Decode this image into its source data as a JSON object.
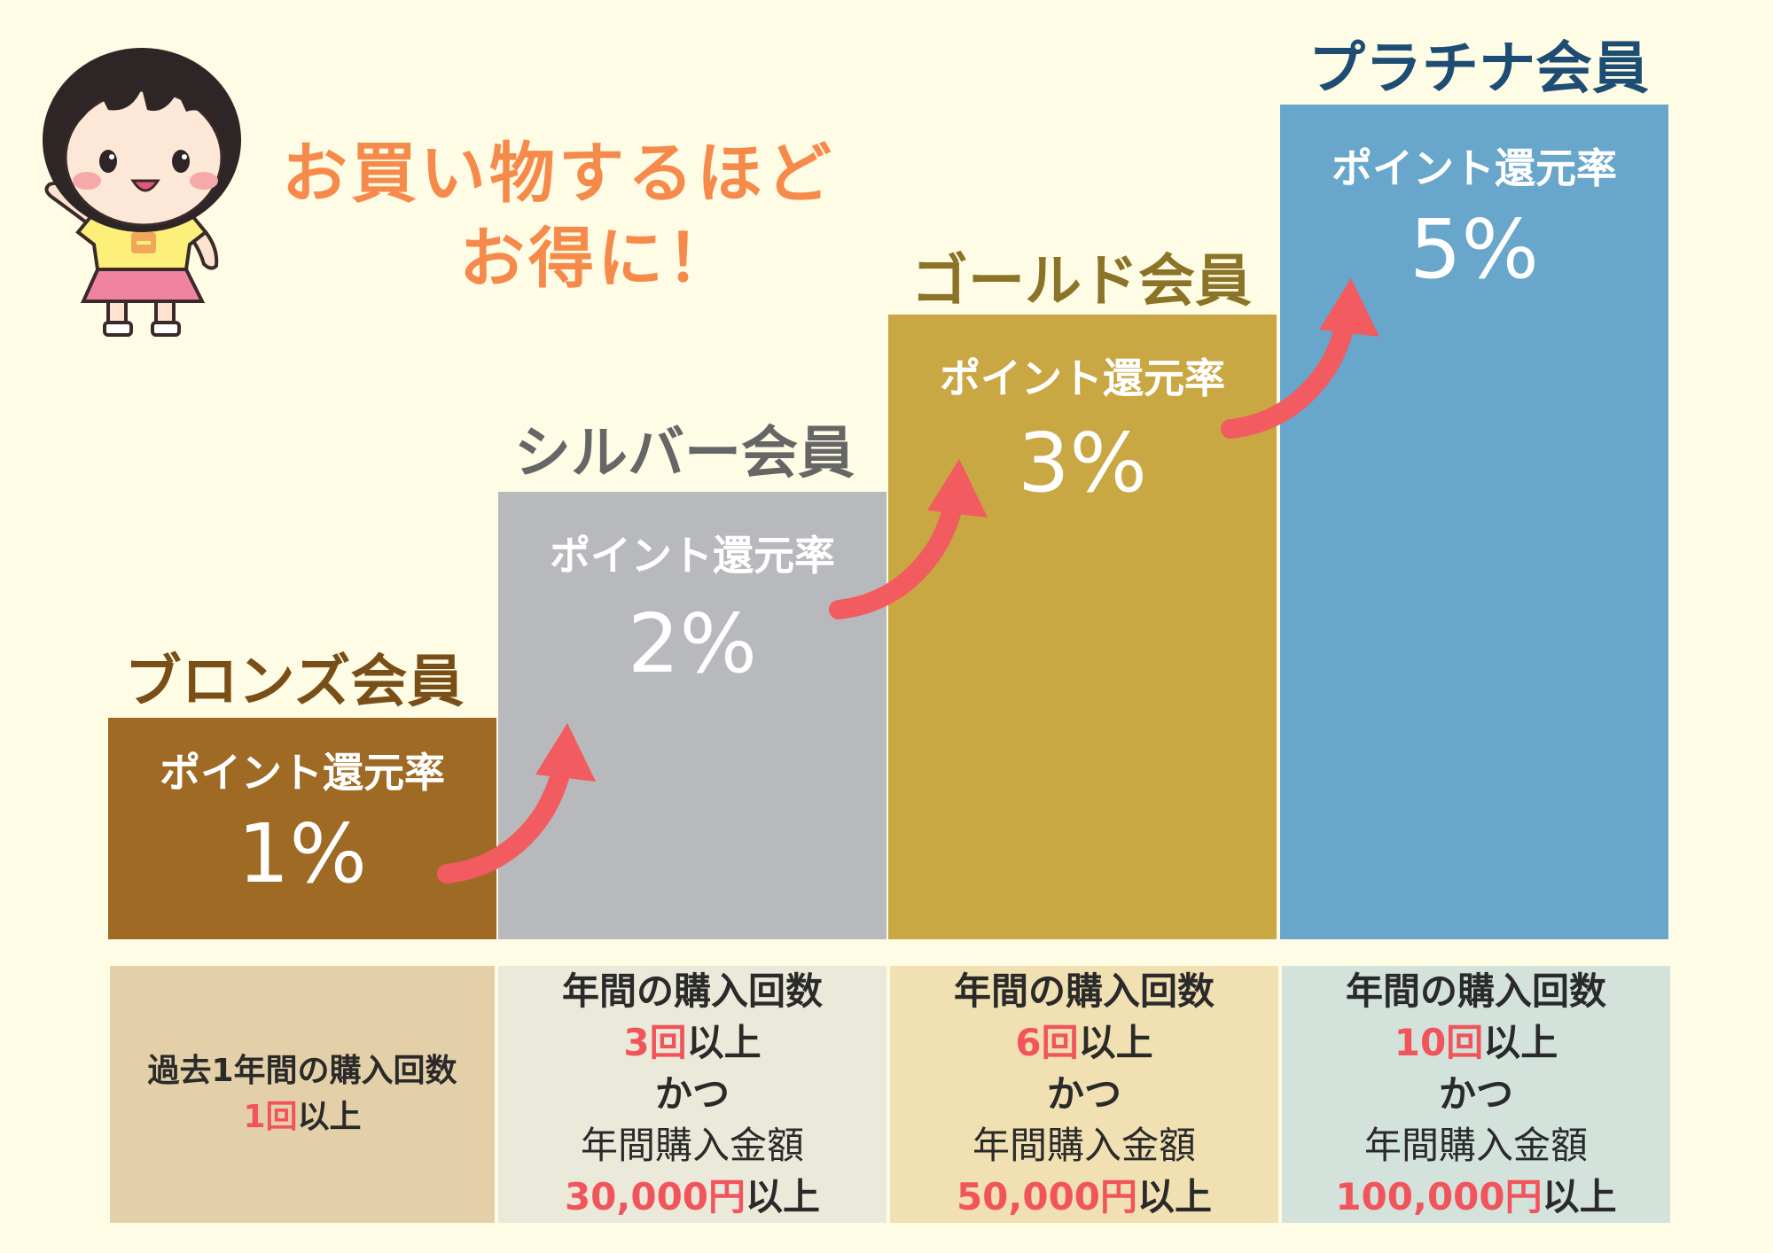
{
  "title": {
    "line1": "お買い物するほど",
    "line2": "お得に！"
  },
  "tiers": [
    {
      "name": "ブロンズ会員",
      "label": "ポイント還元率",
      "rate": "1%",
      "color": "#9e6a24",
      "name_color": "#7a4e17",
      "condition": {
        "bg": "#e4d0a8",
        "line1": "過去1年間の購入回数",
        "count": "1回",
        "count_suffix": "以上"
      }
    },
    {
      "name": "シルバー会員",
      "label": "ポイント還元率",
      "rate": "2%",
      "color": "#b8b9bc",
      "name_color": "#666666",
      "condition": {
        "bg": "#ebe9da",
        "line1": "年間の購入回数",
        "count": "3回",
        "count_suffix": "以上",
        "conj": "かつ",
        "line4": "年間購入金額",
        "amount": "30,000円",
        "amount_suffix": "以上"
      }
    },
    {
      "name": "ゴールド会員",
      "label": "ポイント還元率",
      "rate": "3%",
      "color": "#c9a743",
      "name_color": "#8b7328",
      "condition": {
        "bg": "#f1e0b2",
        "line1": "年間の購入回数",
        "count": "6回",
        "count_suffix": "以上",
        "conj": "かつ",
        "line4": "年間購入金額",
        "amount": "50,000円",
        "amount_suffix": "以上"
      }
    },
    {
      "name": "プラチナ会員",
      "label": "ポイント還元率",
      "rate": "5%",
      "color": "#68a6cc",
      "name_color": "#1e4d74",
      "condition": {
        "bg": "#d3e3dc",
        "line1": "年間の購入回数",
        "count": "10回",
        "count_suffix": "以上",
        "conj": "かつ",
        "line4": "年間購入金額",
        "amount": "100,000円",
        "amount_suffix": "以上"
      }
    }
  ],
  "colors": {
    "background": "#fefce4",
    "title": "#f58a4a",
    "arrow": "#f25b5f",
    "highlight": "#f2545b"
  },
  "icons": {
    "mascot": "girl-pointing-mascot",
    "arrow": "curved-up-arrow"
  }
}
